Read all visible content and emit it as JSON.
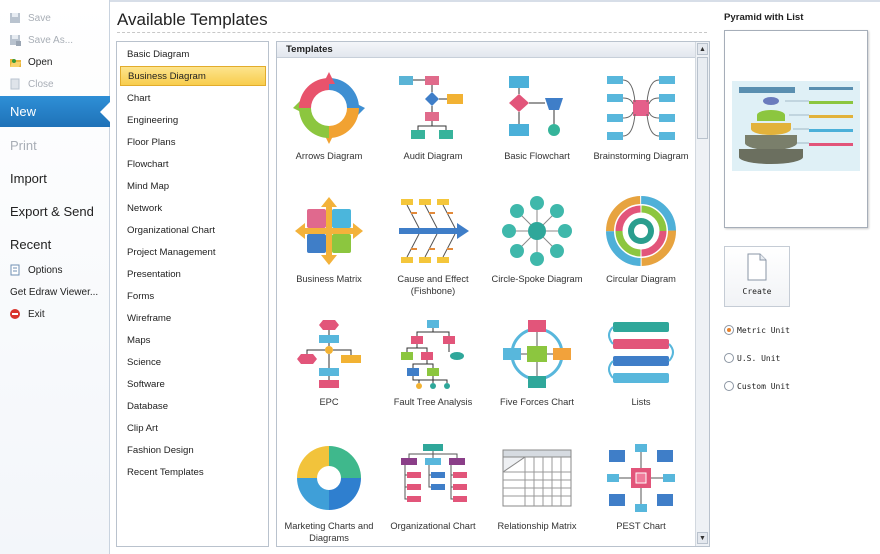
{
  "nav": {
    "save": "Save",
    "save_as": "Save As...",
    "open": "Open",
    "close": "Close",
    "new": "New",
    "print": "Print",
    "import": "Import",
    "export_send": "Export & Send",
    "recent": "Recent",
    "options": "Options",
    "get_viewer": "Get Edraw Viewer...",
    "exit": "Exit"
  },
  "page_title": "Available Templates",
  "categories": [
    "Basic Diagram",
    "Business Diagram",
    "Chart",
    "Engineering",
    "Floor Plans",
    "Flowchart",
    "Mind Map",
    "Network",
    "Organizational Chart",
    "Project Management",
    "Presentation",
    "Forms",
    "Wireframe",
    "Maps",
    "Science",
    "Software",
    "Database",
    "Clip Art",
    "Fashion Design",
    "Recent Templates"
  ],
  "selected_category": "Business Diagram",
  "templates_header": "Templates",
  "templates": [
    {
      "label": "Arrows Diagram",
      "icon": "arrows-diagram-icon"
    },
    {
      "label": "Audit Diagram",
      "icon": "audit-diagram-icon"
    },
    {
      "label": "Basic Flowchart",
      "icon": "basic-flowchart-icon"
    },
    {
      "label": "Brainstorming Diagram",
      "icon": "brainstorming-diagram-icon"
    },
    {
      "label": "Business Matrix",
      "icon": "business-matrix-icon"
    },
    {
      "label": "Cause and Effect (Fishbone)",
      "icon": "fishbone-icon"
    },
    {
      "label": "Circle-Spoke Diagram",
      "icon": "circle-spoke-icon"
    },
    {
      "label": "Circular Diagram",
      "icon": "circular-diagram-icon"
    },
    {
      "label": "EPC",
      "icon": "epc-icon"
    },
    {
      "label": "Fault Tree Analysis",
      "icon": "fault-tree-icon"
    },
    {
      "label": "Five Forces Chart",
      "icon": "five-forces-icon"
    },
    {
      "label": "Lists",
      "icon": "lists-icon"
    },
    {
      "label": "Marketing Charts and Diagrams",
      "icon": "marketing-chart-icon"
    },
    {
      "label": "Organizational Chart",
      "icon": "org-chart-icon"
    },
    {
      "label": "Relationship Matrix",
      "icon": "relationship-matrix-icon"
    },
    {
      "label": "PEST Chart",
      "icon": "pest-chart-icon"
    }
  ],
  "preview": {
    "title": "Pyramid with List"
  },
  "create_label": "Create",
  "units": [
    {
      "label": "Metric Unit",
      "selected": true
    },
    {
      "label": "U.S. Unit",
      "selected": false
    },
    {
      "label": "Custom Unit",
      "selected": false
    }
  ],
  "colors": {
    "accent": "#1f72b8",
    "selection": "#f8cd4d"
  }
}
